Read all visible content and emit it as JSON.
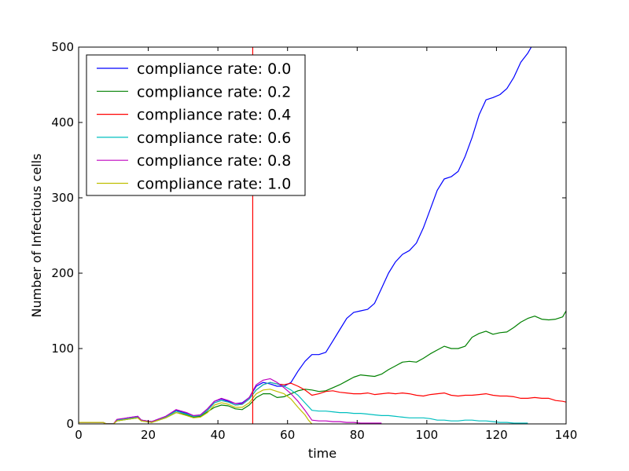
{
  "chart_data": {
    "type": "line",
    "title": "",
    "xlabel": "time",
    "ylabel": "Number of Infectious cells",
    "xlim": [
      0,
      140
    ],
    "ylim": [
      0,
      500
    ],
    "xticks": [
      0,
      20,
      40,
      60,
      80,
      100,
      120,
      140
    ],
    "yticks": [
      0,
      100,
      200,
      300,
      400,
      500
    ],
    "grid": false,
    "legend_position": "upper-left",
    "vline": {
      "x": 50,
      "color": "#ff0000"
    },
    "series": [
      {
        "name": "compliance rate: 0.0",
        "color": "#0000ff",
        "x": [
          0,
          7,
          8,
          10,
          11,
          14,
          17,
          18,
          21,
          25,
          28,
          31,
          33,
          35,
          37,
          39,
          41,
          43,
          45,
          47,
          49,
          51,
          53,
          55,
          57,
          59,
          61,
          63,
          65,
          67,
          69,
          71,
          73,
          75,
          77,
          79,
          81,
          83,
          85,
          87,
          89,
          91,
          93,
          95,
          97,
          99,
          101,
          103,
          105,
          107,
          109,
          111,
          113,
          115,
          117,
          119,
          121,
          123,
          125,
          127,
          129,
          130
        ],
        "y": [
          2,
          2,
          0,
          0,
          5,
          8,
          10,
          5,
          3,
          10,
          18,
          14,
          10,
          12,
          20,
          30,
          33,
          30,
          27,
          28,
          35,
          50,
          55,
          53,
          50,
          50,
          55,
          70,
          83,
          92,
          92,
          95,
          110,
          125,
          140,
          148,
          150,
          152,
          160,
          180,
          200,
          215,
          225,
          230,
          240,
          260,
          285,
          310,
          325,
          328,
          335,
          355,
          380,
          410,
          430,
          433,
          437,
          445,
          460,
          480,
          492,
          500
        ]
      },
      {
        "name": "compliance rate: 0.2",
        "color": "#008000",
        "x": [
          0,
          7,
          8,
          10,
          11,
          14,
          17,
          18,
          21,
          25,
          28,
          31,
          33,
          35,
          37,
          39,
          41,
          43,
          45,
          47,
          49,
          51,
          53,
          55,
          57,
          59,
          61,
          63,
          65,
          67,
          69,
          71,
          73,
          75,
          77,
          79,
          81,
          83,
          85,
          87,
          89,
          91,
          93,
          95,
          97,
          99,
          101,
          103,
          105,
          107,
          109,
          111,
          113,
          115,
          117,
          119,
          121,
          123,
          125,
          127,
          129,
          131,
          133,
          135,
          137,
          139,
          140
        ],
        "y": [
          2,
          2,
          0,
          0,
          4,
          6,
          8,
          4,
          2,
          8,
          15,
          12,
          9,
          10,
          16,
          22,
          25,
          24,
          20,
          19,
          25,
          35,
          40,
          40,
          35,
          36,
          40,
          44,
          46,
          45,
          43,
          44,
          48,
          52,
          57,
          62,
          65,
          64,
          63,
          66,
          72,
          77,
          82,
          83,
          82,
          87,
          93,
          98,
          103,
          100,
          100,
          103,
          115,
          120,
          123,
          119,
          121,
          122,
          128,
          135,
          140,
          143,
          139,
          138,
          139,
          142,
          150
        ]
      },
      {
        "name": "compliance rate: 0.4",
        "color": "#ff0000",
        "x": [
          0,
          7,
          8,
          10,
          11,
          14,
          17,
          18,
          21,
          25,
          28,
          31,
          33,
          35,
          37,
          39,
          41,
          43,
          45,
          47,
          49,
          51,
          53,
          55,
          57,
          59,
          61,
          63,
          65,
          67,
          69,
          71,
          73,
          75,
          77,
          79,
          81,
          83,
          85,
          87,
          89,
          91,
          93,
          95,
          97,
          99,
          101,
          103,
          105,
          107,
          109,
          111,
          113,
          115,
          117,
          119,
          121,
          123,
          125,
          127,
          129,
          131,
          133,
          135,
          137,
          139,
          140
        ],
        "y": [
          2,
          2,
          0,
          0,
          5,
          7,
          9,
          5,
          3,
          9,
          17,
          13,
          10,
          11,
          18,
          28,
          31,
          29,
          25,
          26,
          33,
          45,
          52,
          55,
          53,
          52,
          54,
          50,
          45,
          38,
          40,
          43,
          44,
          42,
          41,
          40,
          40,
          41,
          39,
          40,
          41,
          40,
          41,
          40,
          38,
          37,
          39,
          40,
          41,
          38,
          37,
          38,
          38,
          39,
          40,
          38,
          37,
          37,
          36,
          34,
          34,
          35,
          34,
          34,
          31,
          30,
          29
        ]
      },
      {
        "name": "compliance rate: 0.6",
        "color": "#00bfbf",
        "x": [
          0,
          7,
          8,
          10,
          11,
          14,
          17,
          18,
          21,
          25,
          28,
          31,
          33,
          35,
          37,
          39,
          41,
          43,
          45,
          47,
          49,
          51,
          53,
          55,
          57,
          59,
          61,
          63,
          65,
          67,
          69,
          71,
          73,
          75,
          77,
          79,
          81,
          83,
          85,
          87,
          89,
          91,
          93,
          95,
          97,
          99,
          101,
          103,
          105,
          107,
          109,
          111,
          113,
          115,
          117,
          119,
          121,
          123,
          125,
          127,
          129
        ],
        "y": [
          2,
          2,
          0,
          0,
          5,
          7,
          9,
          5,
          3,
          9,
          17,
          13,
          10,
          11,
          18,
          28,
          31,
          29,
          25,
          26,
          33,
          45,
          52,
          55,
          53,
          50,
          45,
          38,
          28,
          18,
          17,
          17,
          16,
          15,
          15,
          14,
          14,
          13,
          12,
          11,
          11,
          10,
          9,
          8,
          8,
          8,
          7,
          5,
          5,
          4,
          4,
          5,
          5,
          4,
          4,
          3,
          2,
          2,
          1,
          1,
          1
        ]
      },
      {
        "name": "compliance rate: 0.8",
        "color": "#bf00bf",
        "x": [
          0,
          7,
          8,
          10,
          11,
          14,
          17,
          18,
          21,
          25,
          28,
          31,
          33,
          35,
          37,
          39,
          41,
          43,
          45,
          47,
          49,
          51,
          53,
          55,
          57,
          59,
          61,
          63,
          65,
          67,
          69,
          71,
          73,
          75,
          77,
          79,
          81,
          83,
          85,
          87
        ],
        "y": [
          2,
          2,
          0,
          0,
          6,
          8,
          10,
          5,
          3,
          10,
          19,
          15,
          11,
          12,
          20,
          30,
          34,
          31,
          27,
          27,
          35,
          52,
          58,
          60,
          55,
          48,
          40,
          30,
          18,
          5,
          4,
          4,
          3,
          3,
          2,
          2,
          1,
          1,
          1,
          1
        ]
      },
      {
        "name": "compliance rate: 1.0",
        "color": "#bfbf00",
        "x": [
          0,
          7,
          8,
          10,
          11,
          14,
          17,
          18,
          21,
          25,
          28,
          31,
          33,
          35,
          37,
          39,
          41,
          43,
          45,
          47,
          49,
          51,
          53,
          55,
          57,
          59,
          61,
          63,
          65,
          66,
          67
        ],
        "y": [
          2,
          2,
          0,
          0,
          4,
          6,
          8,
          4,
          2,
          8,
          15,
          11,
          8,
          9,
          15,
          25,
          28,
          26,
          22,
          22,
          28,
          40,
          45,
          46,
          43,
          40,
          33,
          22,
          12,
          5,
          0
        ]
      }
    ]
  }
}
